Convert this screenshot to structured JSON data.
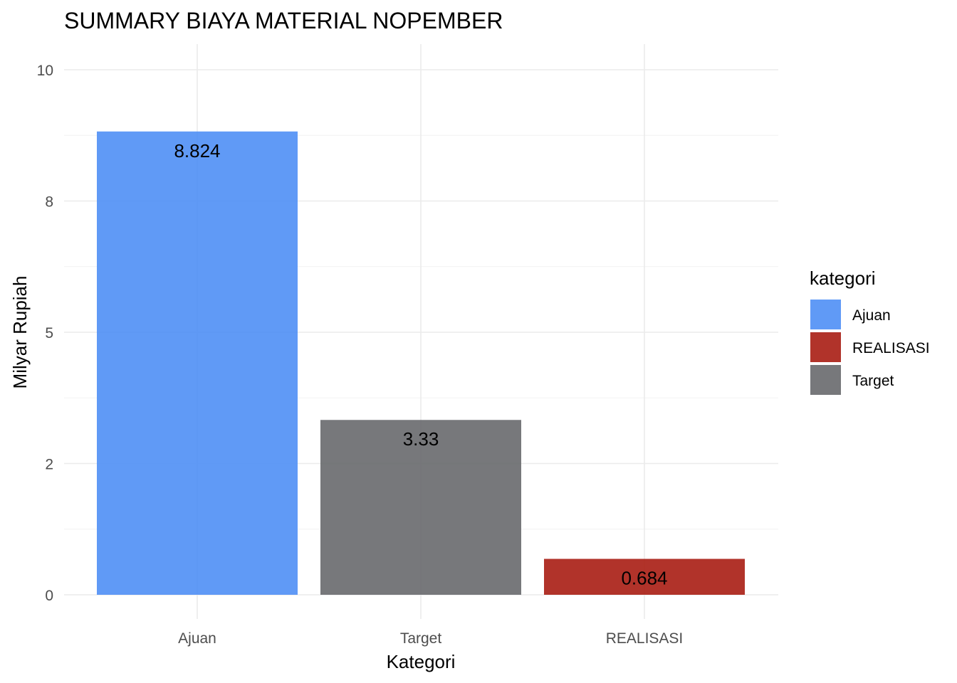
{
  "chart_data": {
    "type": "bar",
    "title": "SUMMARY BIAYA MATERIAL NOPEMBER",
    "xlabel": "Kategori",
    "ylabel": "Milyar Rupiah",
    "categories": [
      "Ajuan",
      "Target",
      "REALISASI"
    ],
    "values": [
      8.824,
      3.33,
      0.684
    ],
    "data_labels": [
      "8.824",
      "3.33",
      "0.684"
    ],
    "ylim": [
      0,
      10
    ],
    "y_ticks": [
      0,
      2.5,
      5,
      7.5,
      10
    ],
    "y_tick_labels": [
      "0",
      "2",
      "5",
      "8",
      "10"
    ],
    "y_minor_ticks": [
      1.25,
      3.75,
      6.25,
      8.75
    ],
    "grid": true,
    "legend": {
      "title": "kategori",
      "position": "right",
      "entries": [
        {
          "label": "Ajuan",
          "color": "#4f8ff5"
        },
        {
          "label": "REALISASI",
          "color": "#a81d13"
        },
        {
          "label": "Target",
          "color": "#68696d"
        }
      ]
    },
    "bar_colors": {
      "Ajuan": "#4f8ff5",
      "Target": "#68696d",
      "REALISASI": "#a81d13"
    }
  }
}
